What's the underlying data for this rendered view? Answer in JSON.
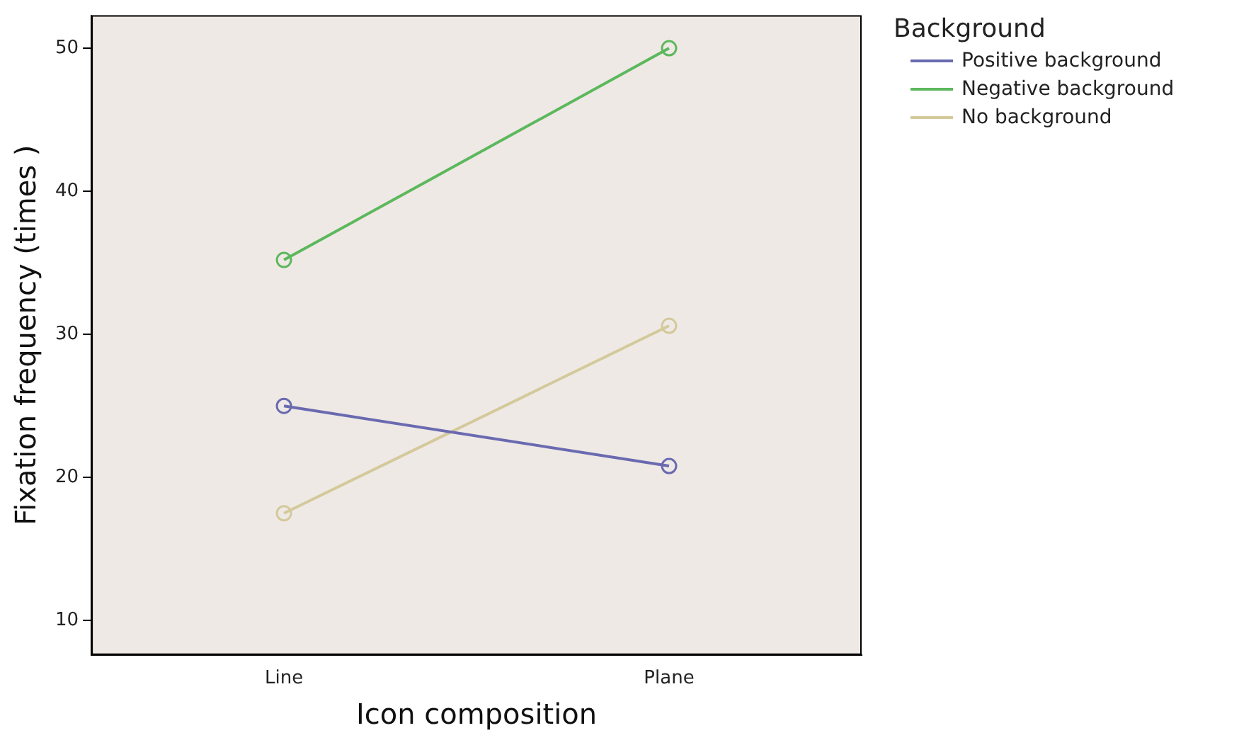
{
  "chart_data": {
    "type": "line",
    "xlabel": "Icon composition",
    "ylabel": "Fixation frequency (times )",
    "legend_title": "Background",
    "legend": "top right",
    "marker": "circle",
    "categories": [
      "Line",
      "Plane"
    ],
    "ylim": [
      7.6,
      52.3
    ],
    "yticks": [
      10,
      20,
      30,
      40,
      50
    ],
    "grid": false,
    "series": [
      {
        "name": "Positive background",
        "color": "#6a6ab0",
        "values": [
          25.0,
          20.8
        ]
      },
      {
        "name": "Negative background",
        "color": "#5cb85c",
        "values": [
          35.2,
          50.0
        ]
      },
      {
        "name": "No background",
        "color": "#d4c99a",
        "values": [
          17.5,
          30.6
        ]
      }
    ]
  }
}
